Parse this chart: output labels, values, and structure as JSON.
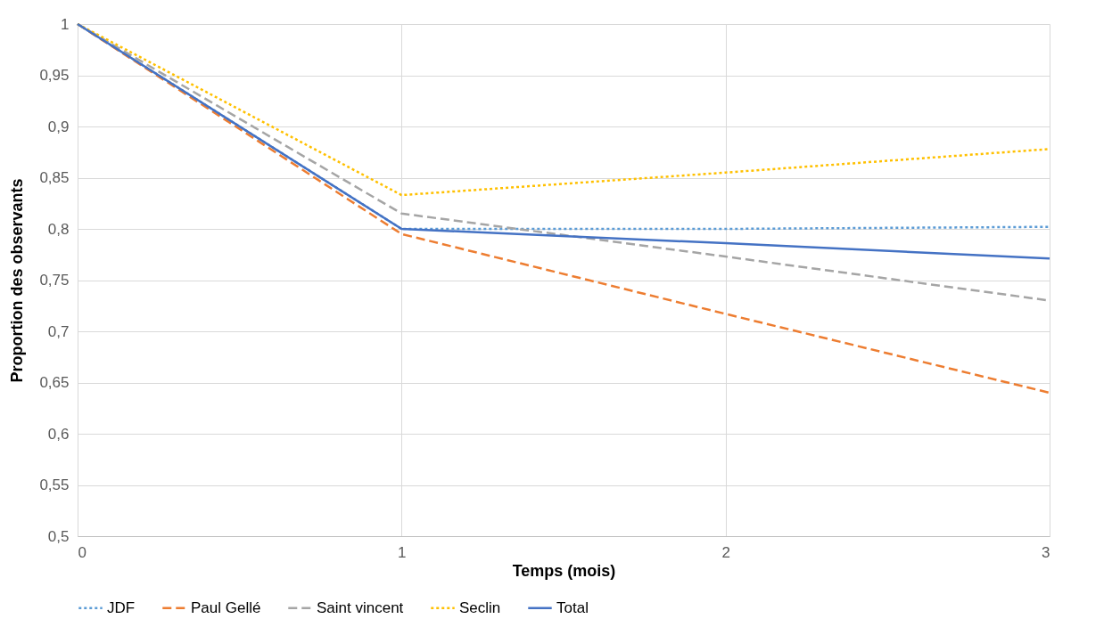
{
  "chart_data": {
    "type": "line",
    "xlabel": "Temps (mois)",
    "ylabel": "Proportion des observants",
    "x": [
      0,
      1,
      2,
      3
    ],
    "series": [
      {
        "name": "JDF",
        "color": "#5b9bd5",
        "line_style": "dotted",
        "values": [
          1,
          0.8,
          0.8,
          0.802
        ]
      },
      {
        "name": "Paul Gellé",
        "color": "#ed7d31",
        "line_style": "dashed",
        "values": [
          1,
          0.795,
          0.717,
          0.64
        ]
      },
      {
        "name": "Saint vincent",
        "color": "#a5a5a5",
        "line_style": "dashed",
        "values": [
          1,
          0.815,
          0.773,
          0.73
        ]
      },
      {
        "name": "Seclin",
        "color": "#ffc000",
        "line_style": "dotted",
        "values": [
          1,
          0.833,
          0.855,
          0.878
        ]
      },
      {
        "name": "Total",
        "color": "#4472c4",
        "line_style": "solid",
        "values": [
          1,
          0.8,
          0.786,
          0.771
        ]
      }
    ],
    "xlim": [
      0,
      3
    ],
    "xticks": [
      0,
      1,
      2,
      3
    ],
    "ylim": [
      0.5,
      1
    ],
    "yticks": [
      {
        "value": 0.5,
        "label": "0,5"
      },
      {
        "value": 0.55,
        "label": "0,55"
      },
      {
        "value": 0.6,
        "label": "0,6"
      },
      {
        "value": 0.65,
        "label": "0,65"
      },
      {
        "value": 0.7,
        "label": "0,7"
      },
      {
        "value": 0.75,
        "label": "0,75"
      },
      {
        "value": 0.8,
        "label": "0,8"
      },
      {
        "value": 0.85,
        "label": "0,85"
      },
      {
        "value": 0.9,
        "label": "0,9"
      },
      {
        "value": 0.95,
        "label": "0,95"
      },
      {
        "value": 1,
        "label": "1"
      }
    ],
    "grid": true,
    "legend": "bottom",
    "marker": "none"
  }
}
